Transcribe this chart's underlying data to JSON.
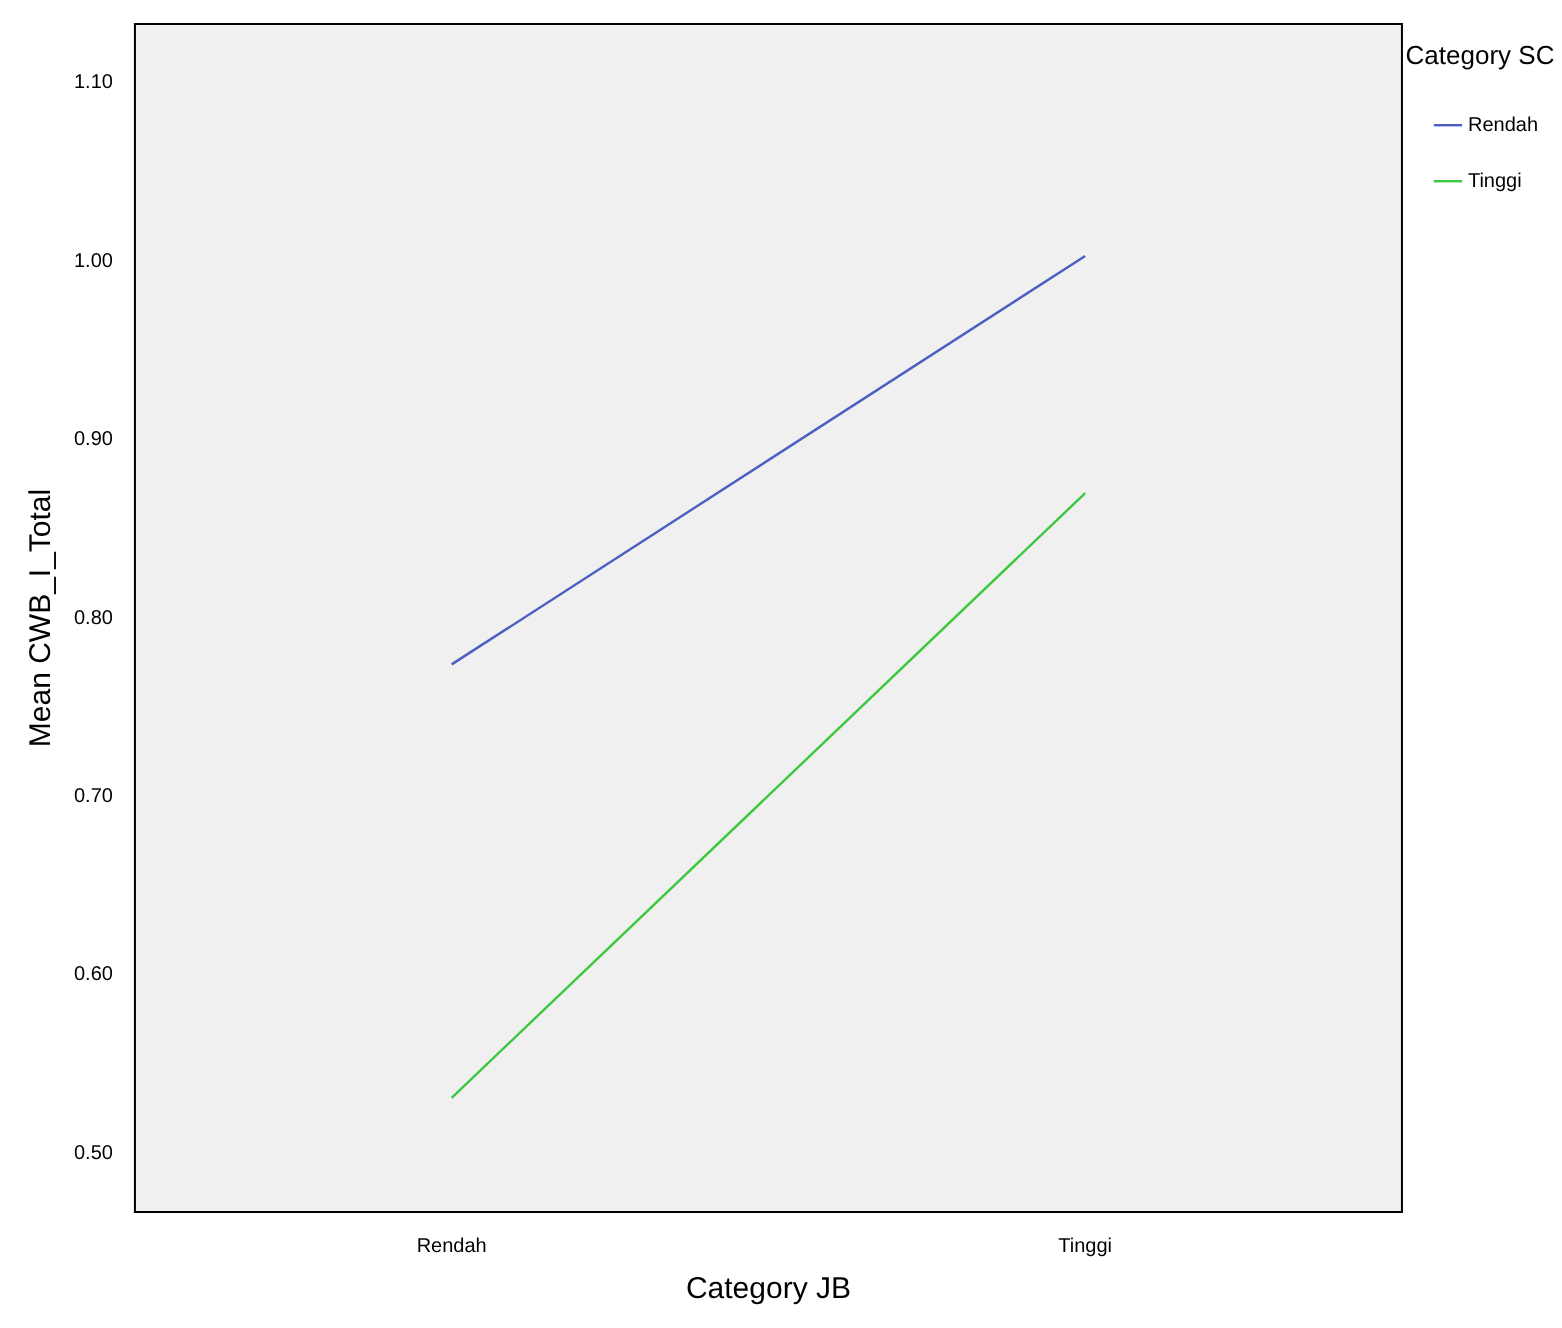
{
  "chart_data": {
    "type": "line",
    "xlabel": "Category JB",
    "ylabel": "Mean CWB_I_Total",
    "legend_title": "Category SC",
    "categories": [
      "Rendah",
      "Tinggi"
    ],
    "series": [
      {
        "name": "Rendah",
        "color": "#4a5fc1",
        "values": [
          0.774,
          1.003
        ]
      },
      {
        "name": "Tinggi",
        "color": "#3cc83c",
        "values": [
          0.531,
          0.87
        ]
      }
    ],
    "ylim": [
      0.467,
      1.133
    ],
    "yticks": [
      {
        "value": 0.5,
        "label": "0.50"
      },
      {
        "value": 0.6,
        "label": "0.60"
      },
      {
        "value": 0.7,
        "label": "0.70"
      },
      {
        "value": 0.8,
        "label": "0.80"
      },
      {
        "value": 0.9,
        "label": "0.90"
      },
      {
        "value": 1.0,
        "label": "1.00"
      },
      {
        "value": 1.1,
        "label": "1.10"
      }
    ],
    "grid": false,
    "legend": "top right",
    "marker": "none",
    "line_style": "solid"
  }
}
